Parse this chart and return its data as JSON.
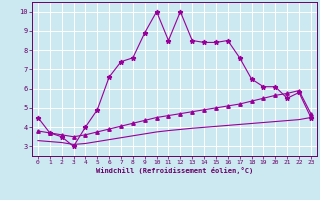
{
  "xlabel": "Windchill (Refroidissement éolien,°C)",
  "background_color": "#cce8f0",
  "grid_color": "#ffffff",
  "line_color": "#990099",
  "spine_color": "#660066",
  "tick_color": "#660066",
  "xlim": [
    -0.5,
    23.5
  ],
  "ylim": [
    2.5,
    10.5
  ],
  "xticks": [
    0,
    1,
    2,
    3,
    4,
    5,
    6,
    7,
    8,
    9,
    10,
    11,
    12,
    13,
    14,
    15,
    16,
    17,
    18,
    19,
    20,
    21,
    22,
    23
  ],
  "yticks": [
    3,
    4,
    5,
    6,
    7,
    8,
    9,
    10
  ],
  "curve1_x": [
    0,
    1,
    2,
    3,
    4,
    5,
    6,
    7,
    8,
    9,
    10,
    11,
    12,
    13,
    14,
    15,
    16,
    17,
    18,
    19,
    20,
    21,
    22,
    23
  ],
  "curve1_y": [
    4.5,
    3.7,
    3.5,
    3.0,
    4.0,
    4.9,
    6.6,
    7.4,
    7.6,
    8.9,
    10.0,
    8.5,
    10.0,
    8.5,
    8.4,
    8.4,
    8.5,
    7.6,
    6.5,
    6.1,
    6.1,
    5.5,
    5.8,
    4.5
  ],
  "curve2_x": [
    0,
    1,
    2,
    3,
    4,
    5,
    6,
    7,
    8,
    9,
    10,
    11,
    12,
    13,
    14,
    15,
    16,
    17,
    18,
    19,
    20,
    21,
    22,
    23
  ],
  "curve2_y": [
    3.8,
    3.7,
    3.6,
    3.5,
    3.6,
    3.75,
    3.9,
    4.05,
    4.2,
    4.35,
    4.5,
    4.6,
    4.7,
    4.8,
    4.9,
    5.0,
    5.1,
    5.2,
    5.35,
    5.5,
    5.65,
    5.75,
    5.9,
    4.7
  ],
  "curve3_x": [
    0,
    1,
    2,
    3,
    4,
    5,
    6,
    7,
    8,
    9,
    10,
    11,
    12,
    13,
    14,
    15,
    16,
    17,
    18,
    19,
    20,
    21,
    22,
    23
  ],
  "curve3_y": [
    3.3,
    3.25,
    3.2,
    3.1,
    3.15,
    3.25,
    3.35,
    3.45,
    3.55,
    3.65,
    3.75,
    3.82,
    3.88,
    3.94,
    3.99,
    4.04,
    4.09,
    4.14,
    4.19,
    4.24,
    4.29,
    4.34,
    4.39,
    4.5
  ],
  "figwidth": 3.2,
  "figheight": 2.0,
  "dpi": 100
}
